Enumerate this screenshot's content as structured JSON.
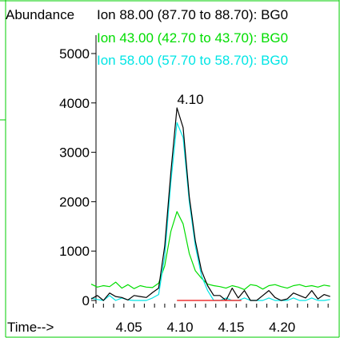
{
  "chart_data": {
    "type": "line",
    "ylabel": "Abundance",
    "xlabel": "Time-->",
    "peak_label": "4.10",
    "x_ticks": [
      4.05,
      4.1,
      4.15,
      4.2
    ],
    "x_tick_labels": [
      "4.05",
      "4.10",
      "4.15",
      "4.20"
    ],
    "y_ticks": [
      0,
      1000,
      2000,
      3000,
      4000,
      5000
    ],
    "y_tick_labels": [
      "0",
      "1000",
      "2000",
      "3000",
      "4000",
      "5000"
    ],
    "xlim": [
      4.013,
      4.248
    ],
    "ylim": [
      0,
      5000
    ],
    "series": [
      {
        "name": "Ion 88.00 (87.70 to 88.70): BG0",
        "color": "#000000",
        "x": [
          4.013,
          4.019,
          4.025,
          4.031,
          4.037,
          4.043,
          4.049,
          4.055,
          4.061,
          4.067,
          4.073,
          4.079,
          4.085,
          4.091,
          4.097,
          4.103,
          4.109,
          4.115,
          4.121,
          4.127,
          4.133,
          4.139,
          4.145,
          4.151,
          4.157,
          4.163,
          4.169,
          4.175,
          4.181,
          4.187,
          4.193,
          4.199,
          4.205,
          4.211,
          4.217,
          4.223,
          4.229,
          4.235,
          4.241,
          4.247
        ],
        "values": [
          30,
          100,
          0,
          150,
          80,
          60,
          10,
          100,
          80,
          60,
          160,
          250,
          1100,
          2600,
          3900,
          3500,
          2100,
          1200,
          600,
          300,
          100,
          100,
          0,
          250,
          50,
          200,
          0,
          0,
          100,
          200,
          60,
          0,
          30,
          150,
          100,
          50,
          200,
          30,
          120,
          80
        ]
      },
      {
        "name": "Ion 43.00 (42.70 to 43.70): BG0",
        "color": "#00dd00",
        "x": [
          4.013,
          4.019,
          4.025,
          4.031,
          4.037,
          4.043,
          4.049,
          4.055,
          4.061,
          4.067,
          4.073,
          4.079,
          4.085,
          4.091,
          4.097,
          4.103,
          4.109,
          4.115,
          4.121,
          4.127,
          4.133,
          4.139,
          4.145,
          4.151,
          4.157,
          4.163,
          4.169,
          4.175,
          4.181,
          4.187,
          4.193,
          4.199,
          4.205,
          4.211,
          4.217,
          4.223,
          4.229,
          4.235,
          4.241,
          4.247
        ],
        "values": [
          330,
          270,
          300,
          280,
          370,
          250,
          320,
          240,
          300,
          270,
          260,
          350,
          700,
          1400,
          1800,
          1550,
          950,
          600,
          450,
          330,
          300,
          280,
          250,
          300,
          270,
          220,
          320,
          300,
          230,
          300,
          320,
          280,
          250,
          300,
          320,
          280,
          300,
          270,
          310,
          290
        ]
      },
      {
        "name": "Ion 58.00 (57.70 to 58.70): BG0",
        "color": "#00e5e5",
        "x": [
          4.013,
          4.019,
          4.025,
          4.031,
          4.037,
          4.043,
          4.049,
          4.055,
          4.061,
          4.067,
          4.073,
          4.079,
          4.085,
          4.091,
          4.097,
          4.103,
          4.109,
          4.115,
          4.121,
          4.127,
          4.133,
          4.139,
          4.145,
          4.151,
          4.157,
          4.163,
          4.169,
          4.175,
          4.181,
          4.187,
          4.193,
          4.199,
          4.205,
          4.211,
          4.217,
          4.223,
          4.229,
          4.235,
          4.241,
          4.247
        ],
        "values": [
          50,
          20,
          0,
          100,
          0,
          50,
          10,
          0,
          0,
          0,
          50,
          120,
          900,
          2400,
          3600,
          3300,
          2000,
          1100,
          500,
          200,
          0,
          0,
          50,
          0,
          0,
          50,
          0,
          0,
          0,
          50,
          0,
          0,
          0,
          50,
          0,
          0,
          50,
          0,
          0,
          20
        ]
      },
      {
        "name": "",
        "color": "#ee3333",
        "x": [
          4.097,
          4.16
        ],
        "values": [
          0,
          0
        ]
      }
    ]
  }
}
